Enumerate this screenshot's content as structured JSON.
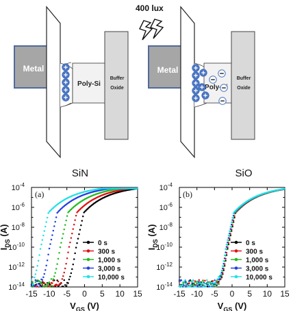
{
  "diagram": {
    "lux_label": "400 lux",
    "left": {
      "metal_label": "Metal",
      "semiconductor_label": "Poly-Si",
      "oxide_label_line1": "Buffer",
      "oxide_label_line2": "Oxide",
      "title": "SiN"
    },
    "right": {
      "metal_label": "Metal",
      "semiconductor_label": "Poly-Si",
      "oxide_label_line1": "Buffer",
      "oxide_label_line2": "Oxide",
      "title": "SiO"
    },
    "colors": {
      "metal_fill": "#a6a6a6",
      "metal_stroke": "#4f6b9a",
      "oxide_fill": "#d9d9d9",
      "charge_fill": "#4a75c0"
    }
  },
  "chart_data": [
    {
      "type": "scatter",
      "panel_label": "(a)",
      "xlabel": "V",
      "xlabel_sub": "GS",
      "xlabel_unit": " (V)",
      "ylabel": "I",
      "ylabel_sub": "DS",
      "ylabel_unit": " (A)",
      "xlim": [
        -15,
        15
      ],
      "ylim_exp": [
        -14,
        -4
      ],
      "log_y": true,
      "x_ticks": [
        "-15",
        "-10",
        "-5",
        "0",
        "5",
        "10",
        "15"
      ],
      "y_ticks": [
        {
          "base": "10",
          "exp": "-14"
        },
        {
          "base": "10",
          "exp": "-12"
        },
        {
          "base": "10",
          "exp": "-10"
        },
        {
          "base": "10",
          "exp": "-8"
        },
        {
          "base": "10",
          "exp": "-6"
        },
        {
          "base": "10",
          "exp": "-4"
        }
      ],
      "series": [
        {
          "name": "0 s",
          "color": "#000000",
          "vth": -2.5
        },
        {
          "name": "300 s",
          "color": "#e01010",
          "vth": -4.5
        },
        {
          "name": "1,000 s",
          "color": "#22bb22",
          "vth": -7.0
        },
        {
          "name": "3,000 s",
          "color": "#2040e0",
          "vth": -10.0
        },
        {
          "name": "10,000 s",
          "color": "#22e0e8",
          "vth": -12.5
        }
      ]
    },
    {
      "type": "scatter",
      "panel_label": "(b)",
      "xlabel": "V",
      "xlabel_sub": "GS",
      "xlabel_unit": " (V)",
      "ylabel": "I",
      "ylabel_sub": "DS",
      "ylabel_unit": " (A)",
      "xlim": [
        -15,
        15
      ],
      "ylim_exp": [
        -14,
        -4
      ],
      "log_y": true,
      "x_ticks": [
        "-15",
        "-10",
        "-5",
        "0",
        "5",
        "10",
        "15"
      ],
      "y_ticks": [
        {
          "base": "10",
          "exp": "-14"
        },
        {
          "base": "10",
          "exp": "-12"
        },
        {
          "base": "10",
          "exp": "-10"
        },
        {
          "base": "10",
          "exp": "-8"
        },
        {
          "base": "10",
          "exp": "-6"
        },
        {
          "base": "10",
          "exp": "-4"
        }
      ],
      "series": [
        {
          "name": "0 s",
          "color": "#000000",
          "vth": -1.3
        },
        {
          "name": "300 s",
          "color": "#e01010",
          "vth": -1.4
        },
        {
          "name": "1,000 s",
          "color": "#22bb22",
          "vth": -1.55
        },
        {
          "name": "3,000 s",
          "color": "#2040e0",
          "vth": -1.7
        },
        {
          "name": "10,000 s",
          "color": "#22e0e8",
          "vth": -1.85
        }
      ]
    }
  ]
}
